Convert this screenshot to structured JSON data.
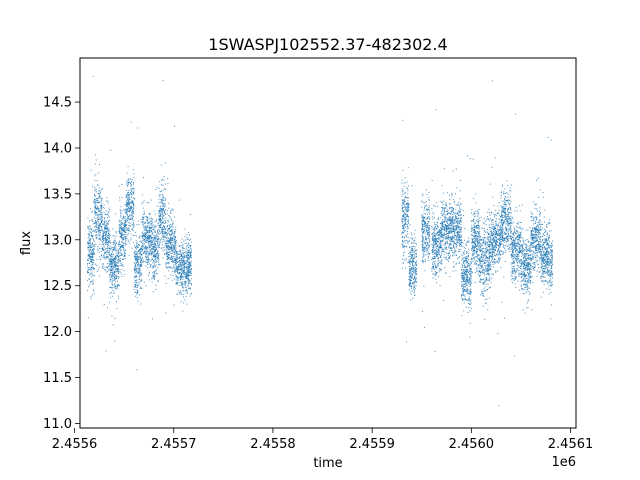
{
  "chart_data": {
    "type": "scatter",
    "title": "1SWASPJ102552.37-482302.4",
    "xlabel": "time",
    "ylabel": "flux",
    "x_offset_label": "1e6",
    "xlim": [
      2455605.5,
      2456105.5
    ],
    "ylim": [
      10.95,
      14.98
    ],
    "grid": false,
    "x_ticks": [
      {
        "value": 2455600,
        "label": "2.4556"
      },
      {
        "value": 2455700,
        "label": "2.4557"
      },
      {
        "value": 2455800,
        "label": "2.4558"
      },
      {
        "value": 2455900,
        "label": "2.4559"
      },
      {
        "value": 2456000,
        "label": "2.4560"
      },
      {
        "value": 2456100,
        "label": "2.4561"
      }
    ],
    "y_ticks": [
      {
        "value": 11.0,
        "label": "11.0"
      },
      {
        "value": 11.5,
        "label": "11.5"
      },
      {
        "value": 12.0,
        "label": "12.0"
      },
      {
        "value": 12.5,
        "label": "12.5"
      },
      {
        "value": 13.0,
        "label": "13.0"
      },
      {
        "value": 13.5,
        "label": "13.5"
      },
      {
        "value": 14.0,
        "label": "14.0"
      },
      {
        "value": 14.5,
        "label": "14.5"
      }
    ],
    "series": [
      {
        "color": "#1f77b4",
        "marker": "point",
        "segments": [
          {
            "x_range": [
              2455613,
              2455620
            ],
            "center": 12.85,
            "spread": 0.35
          },
          {
            "x_range": [
              2455620,
              2455628
            ],
            "center": 13.25,
            "spread": 0.35
          },
          {
            "x_range": [
              2455628,
              2455635
            ],
            "center": 13.0,
            "spread": 0.3
          },
          {
            "x_range": [
              2455635,
              2455645
            ],
            "center": 12.7,
            "spread": 0.3
          },
          {
            "x_range": [
              2455645,
              2455652
            ],
            "center": 13.05,
            "spread": 0.3
          },
          {
            "x_range": [
              2455652,
              2455660
            ],
            "center": 13.35,
            "spread": 0.3
          },
          {
            "x_range": [
              2455660,
              2455668
            ],
            "center": 12.75,
            "spread": 0.3
          },
          {
            "x_range": [
              2455668,
              2455678
            ],
            "center": 13.0,
            "spread": 0.3
          },
          {
            "x_range": [
              2455678,
              2455685
            ],
            "center": 12.9,
            "spread": 0.3
          },
          {
            "x_range": [
              2455685,
              2455692
            ],
            "center": 13.2,
            "spread": 0.35
          },
          {
            "x_range": [
              2455692,
              2455702
            ],
            "center": 12.95,
            "spread": 0.3
          },
          {
            "x_range": [
              2455702,
              2455718
            ],
            "center": 12.7,
            "spread": 0.25
          },
          {
            "x_range": [
              2455930,
              2455937
            ],
            "center": 13.25,
            "spread": 0.4
          },
          {
            "x_range": [
              2455937,
              2455945
            ],
            "center": 12.7,
            "spread": 0.3
          },
          {
            "x_range": [
              2455950,
              2455958
            ],
            "center": 13.1,
            "spread": 0.3
          },
          {
            "x_range": [
              2455960,
              2455970
            ],
            "center": 12.95,
            "spread": 0.3
          },
          {
            "x_range": [
              2455970,
              2455990
            ],
            "center": 13.1,
            "spread": 0.3
          },
          {
            "x_range": [
              2455990,
              2456000
            ],
            "center": 12.6,
            "spread": 0.3
          },
          {
            "x_range": [
              2456000,
              2456008
            ],
            "center": 13.0,
            "spread": 0.3
          },
          {
            "x_range": [
              2456008,
              2456020
            ],
            "center": 12.8,
            "spread": 0.35
          },
          {
            "x_range": [
              2456020,
              2456030
            ],
            "center": 13.0,
            "spread": 0.3
          },
          {
            "x_range": [
              2456030,
              2456040
            ],
            "center": 13.2,
            "spread": 0.3
          },
          {
            "x_range": [
              2456040,
              2456050
            ],
            "center": 12.9,
            "spread": 0.3
          },
          {
            "x_range": [
              2456050,
              2456060
            ],
            "center": 12.7,
            "spread": 0.3
          },
          {
            "x_range": [
              2456060,
              2456070
            ],
            "center": 13.0,
            "spread": 0.3
          },
          {
            "x_range": [
              2456070,
              2456082
            ],
            "center": 12.8,
            "spread": 0.3
          }
        ]
      }
    ]
  }
}
